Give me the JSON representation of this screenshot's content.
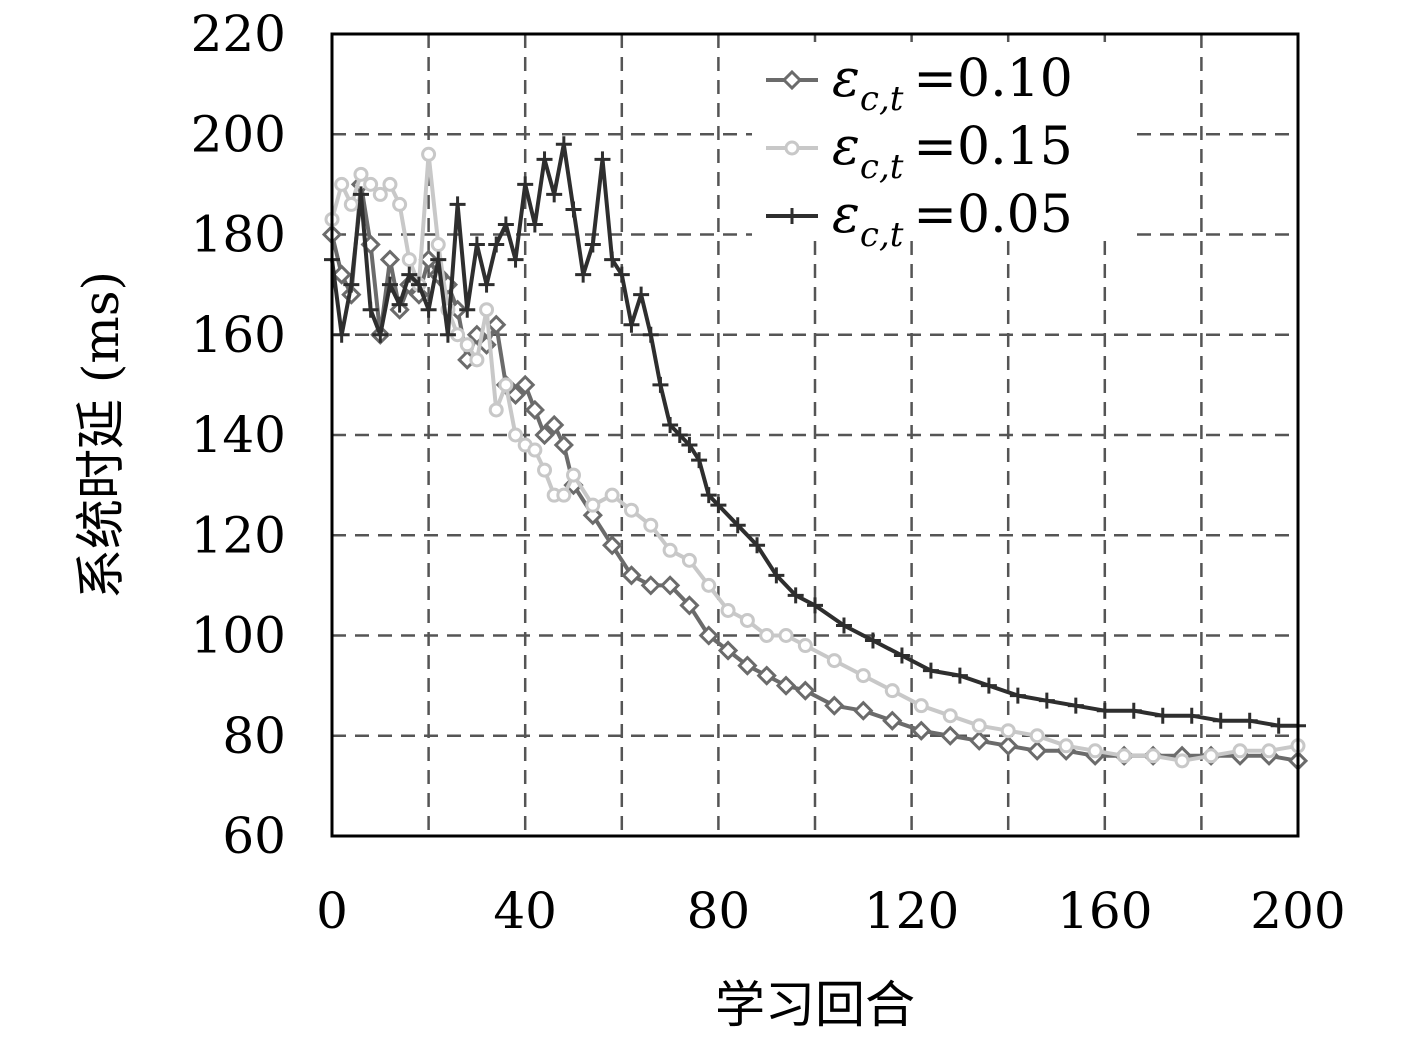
{
  "chart_data": {
    "type": "line",
    "xlabel": "学习回合",
    "ylabel": "系统时延 (ms)",
    "xlim": [
      0,
      200
    ],
    "ylim": [
      60,
      220
    ],
    "xticks": [
      "0",
      "40",
      "80",
      "120",
      "160",
      "200"
    ],
    "yticks": [
      "60",
      "80",
      "100",
      "120",
      "140",
      "160",
      "180",
      "200",
      "220"
    ],
    "grid": "dashed, every 20 units",
    "legend_position": "top-right",
    "series": [
      {
        "name": "ε_{c,t} =0.10",
        "label_sym": "ε",
        "label_sub": "c,t",
        "label_val": "=0.10",
        "color": "#6b6b6b",
        "marker": "diamond",
        "x": [
          0,
          2,
          4,
          6,
          8,
          10,
          12,
          14,
          16,
          18,
          20,
          22,
          24,
          26,
          28,
          30,
          32,
          34,
          36,
          38,
          40,
          42,
          44,
          46,
          48,
          50,
          54,
          58,
          62,
          66,
          70,
          74,
          78,
          82,
          86,
          90,
          94,
          98,
          104,
          110,
          116,
          122,
          128,
          134,
          140,
          146,
          152,
          158,
          164,
          170,
          176,
          182,
          188,
          194,
          200
        ],
        "y": [
          180,
          172,
          168,
          190,
          178,
          160,
          175,
          165,
          170,
          168,
          175,
          172,
          170,
          165,
          155,
          160,
          158,
          162,
          150,
          148,
          150,
          145,
          140,
          142,
          138,
          130,
          124,
          118,
          112,
          110,
          110,
          106,
          100,
          97,
          94,
          92,
          90,
          89,
          86,
          85,
          83,
          81,
          80,
          79,
          78,
          77,
          77,
          76,
          76,
          76,
          76,
          76,
          76,
          76,
          75
        ]
      },
      {
        "name": "ε_{c,t} =0.15",
        "label_sym": "ε",
        "label_sub": "c,t",
        "label_val": "=0.15",
        "color": "#c8c8c8",
        "marker": "circle",
        "x": [
          0,
          2,
          4,
          6,
          8,
          10,
          12,
          14,
          16,
          18,
          20,
          22,
          24,
          26,
          28,
          30,
          32,
          34,
          36,
          38,
          40,
          42,
          44,
          46,
          48,
          50,
          54,
          58,
          62,
          66,
          70,
          74,
          78,
          82,
          86,
          90,
          94,
          98,
          104,
          110,
          116,
          122,
          128,
          134,
          140,
          146,
          152,
          158,
          164,
          170,
          176,
          182,
          188,
          194,
          200
        ],
        "y": [
          183,
          190,
          186,
          192,
          190,
          188,
          190,
          186,
          175,
          170,
          196,
          178,
          165,
          160,
          158,
          155,
          165,
          145,
          150,
          140,
          138,
          137,
          133,
          128,
          128,
          132,
          126,
          128,
          125,
          122,
          117,
          115,
          110,
          105,
          103,
          100,
          100,
          98,
          95,
          92,
          89,
          86,
          84,
          82,
          81,
          80,
          78,
          77,
          76,
          76,
          75,
          76,
          77,
          77,
          78
        ]
      },
      {
        "name": "ε_{c,t} =0.05",
        "label_sym": "ε",
        "label_sub": "c,t",
        "label_val": "=0.05",
        "color": "#2e2e2e",
        "marker": "plus",
        "x": [
          0,
          2,
          4,
          6,
          8,
          10,
          12,
          14,
          16,
          18,
          20,
          22,
          24,
          26,
          28,
          30,
          32,
          34,
          36,
          38,
          40,
          42,
          44,
          46,
          48,
          50,
          52,
          54,
          56,
          58,
          60,
          62,
          64,
          66,
          68,
          70,
          72,
          74,
          76,
          78,
          80,
          84,
          88,
          92,
          96,
          100,
          106,
          112,
          118,
          124,
          130,
          136,
          142,
          148,
          154,
          160,
          166,
          172,
          178,
          184,
          190,
          196,
          200
        ],
        "y": [
          175,
          160,
          170,
          188,
          165,
          160,
          170,
          166,
          172,
          170,
          165,
          175,
          160,
          186,
          165,
          178,
          170,
          178,
          182,
          175,
          190,
          182,
          195,
          188,
          198,
          185,
          172,
          178,
          195,
          175,
          172,
          162,
          168,
          160,
          150,
          142,
          140,
          138,
          135,
          128,
          126,
          122,
          118,
          112,
          108,
          106,
          102,
          99,
          96,
          93,
          92,
          90,
          88,
          87,
          86,
          85,
          85,
          84,
          84,
          83,
          83,
          82,
          82
        ]
      }
    ]
  }
}
